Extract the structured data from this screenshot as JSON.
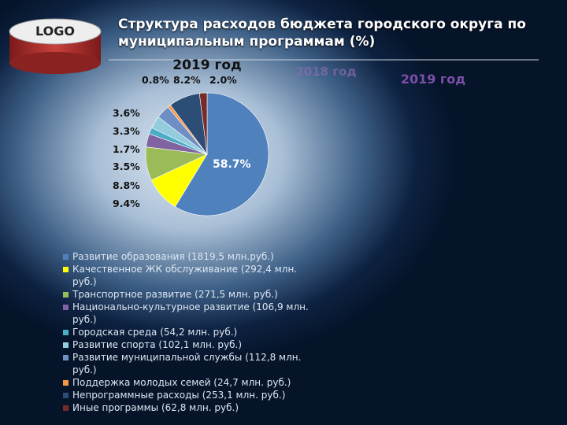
{
  "logo": "LOGO",
  "title": "Структура расходов бюджета городского округа по муниципальным программам (%)",
  "tabs": [
    "2018 год",
    "2019 год"
  ],
  "chart_data": {
    "type": "pie",
    "title": "2019 год",
    "categories": [
      "Развитие образования (1819,5 млн.руб.)",
      "Качественное ЖК обслуживание (292,4 млн. руб.)",
      "Транспортное развитие (271,5 млн. руб.)",
      "Национально-культурное развитие (106,9 млн. руб.)",
      "Городская среда (54,2 млн. руб.)",
      "Развитие спорта (102,1 млн. руб.)",
      "Развитие муниципальной службы (112,8 млн. руб.)",
      "Поддержка молодых семей (24,7 млн. руб.)",
      "Непрограммные расходы (253,1 млн. руб.)",
      "Иные программы (62,8 млн. руб.)"
    ],
    "values": [
      58.7,
      9.4,
      8.8,
      3.5,
      1.7,
      3.3,
      3.6,
      0.8,
      8.2,
      2.0
    ],
    "value_labels": [
      "58.7%",
      "9.4%",
      "8.8%",
      "3.5%",
      "1.7%",
      "3.3%",
      "3.6%",
      "0.8%",
      "8.2%",
      "2.0%"
    ],
    "colors": [
      "#4f81bd",
      "#ffff00",
      "#9bbb59",
      "#8064a2",
      "#4bacc6",
      "#93cddd",
      "#6f8fc4",
      "#f79646",
      "#2c4d75",
      "#772c2a"
    ],
    "legend": "bottom"
  }
}
